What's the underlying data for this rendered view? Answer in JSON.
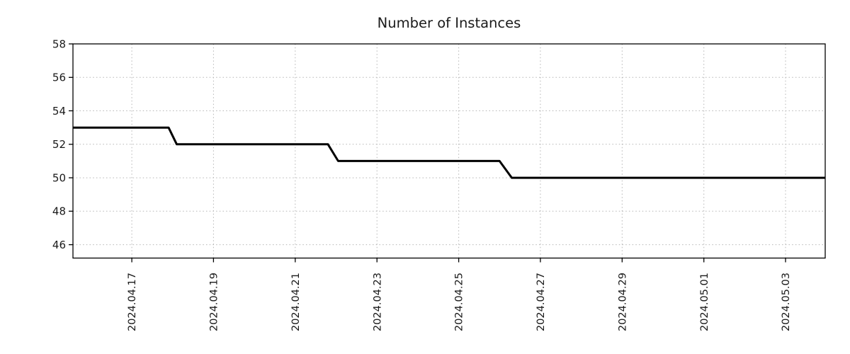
{
  "chart_data": {
    "type": "line",
    "title": "Number of Instances",
    "xlabel": "",
    "ylabel": "",
    "legend": {
      "show": false
    },
    "background": "#ffffff",
    "axis_color": "#000000",
    "text_color": "#1a1a1a",
    "grid": {
      "show": true,
      "line_style": "dotted",
      "color": "#b5b5b5"
    },
    "x_axis": {
      "unit": "date",
      "tick_labels": [
        "2024.04.17",
        "2024.04.19",
        "2024.04.21",
        "2024.04.23",
        "2024.04.25",
        "2024.04.27",
        "2024.04.29",
        "2024.05.01",
        "2024.05.03"
      ],
      "tick_positions": [
        17,
        19,
        21,
        23,
        25,
        27,
        29,
        31,
        33
      ],
      "range_days": [
        15.56,
        33.97
      ],
      "label_rotation_deg": 90
    },
    "y_axis": {
      "ticks": [
        46,
        48,
        50,
        52,
        54,
        56,
        58
      ],
      "range": [
        45.2,
        58
      ]
    },
    "series": [
      {
        "name": "Number of Instances",
        "color": "#000000",
        "line_width": 3,
        "points_day_value": [
          [
            15.56,
            53
          ],
          [
            17.9,
            53
          ],
          [
            18.1,
            52
          ],
          [
            21.8,
            52
          ],
          [
            22.05,
            51
          ],
          [
            26.0,
            51
          ],
          [
            26.3,
            50
          ],
          [
            33.97,
            50
          ]
        ]
      }
    ],
    "steps": [
      {
        "start_date": "2024.04.15",
        "end_date": "2024.04.18",
        "value": 53
      },
      {
        "start_date": "2024.04.18",
        "end_date": "2024.04.22",
        "value": 52
      },
      {
        "start_date": "2024.04.22",
        "end_date": "2024.04.26",
        "value": 51
      },
      {
        "start_date": "2024.04.26",
        "end_date": "2024.05.04",
        "value": 50
      }
    ]
  }
}
